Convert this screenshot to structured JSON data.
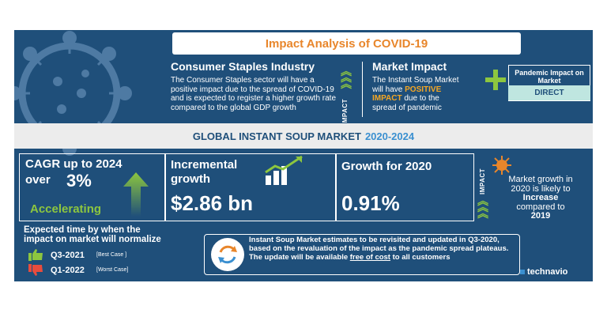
{
  "title": "Impact Analysis of COVID-19",
  "consumer": {
    "heading": "Consumer Staples Industry",
    "body": "The Consumer Staples sector will have a positive impact due to the spread of COVID-19 and is expected to register a higher growth rate compared to the global GDP growth"
  },
  "impact_label": "IMPACT",
  "market_impact": {
    "heading": "Market Impact",
    "line1": "The Instant Soup Market",
    "line2_pre": "will have ",
    "positive": "POSITIVE",
    "impact_word": "IMPACT",
    "line3_post": " due to the",
    "line4": "spread of pandemic"
  },
  "pandemic": {
    "label": "Pandemic Impact on Market",
    "value": "DIRECT"
  },
  "global_bar": {
    "label": "GLOBAL INSTANT SOUP MARKET",
    "years": "2020-2024"
  },
  "cagr": {
    "line1": "CAGR up to 2024",
    "over": "over",
    "value": "3%",
    "status": "Accelerating"
  },
  "incremental": {
    "label1": "Incremental",
    "label2": "growth",
    "value": "$2.86 bn"
  },
  "growth2020": {
    "label": "Growth for 2020",
    "value": "0.91%"
  },
  "impact_side": {
    "label": "IMPACT",
    "line1": "Market growth in",
    "line2": "2020 is likely to",
    "increase": "Increase",
    "line3": "compared to",
    "year": "2019"
  },
  "expected": {
    "heading1": "Expected time by when the",
    "heading2": "impact on market will normalize",
    "best_q": "Q3-2021",
    "best_tag": "[Best Case ]",
    "worst_q": "Q1-2022",
    "worst_tag": "[Worst Case]"
  },
  "note": {
    "pre": "Instant Soup Market estimates to be revisited and updated in Q3-2020, based on the revaluation of the impact as the pandemic spread plateaus. The update will be available ",
    "link": "free of cost",
    "post": " to all customers"
  },
  "brand": "technavio",
  "colors": {
    "navy": "#1f4f7a",
    "orange": "#e8862b",
    "green": "#8dc63f",
    "light_teal": "#bfe6e0"
  }
}
